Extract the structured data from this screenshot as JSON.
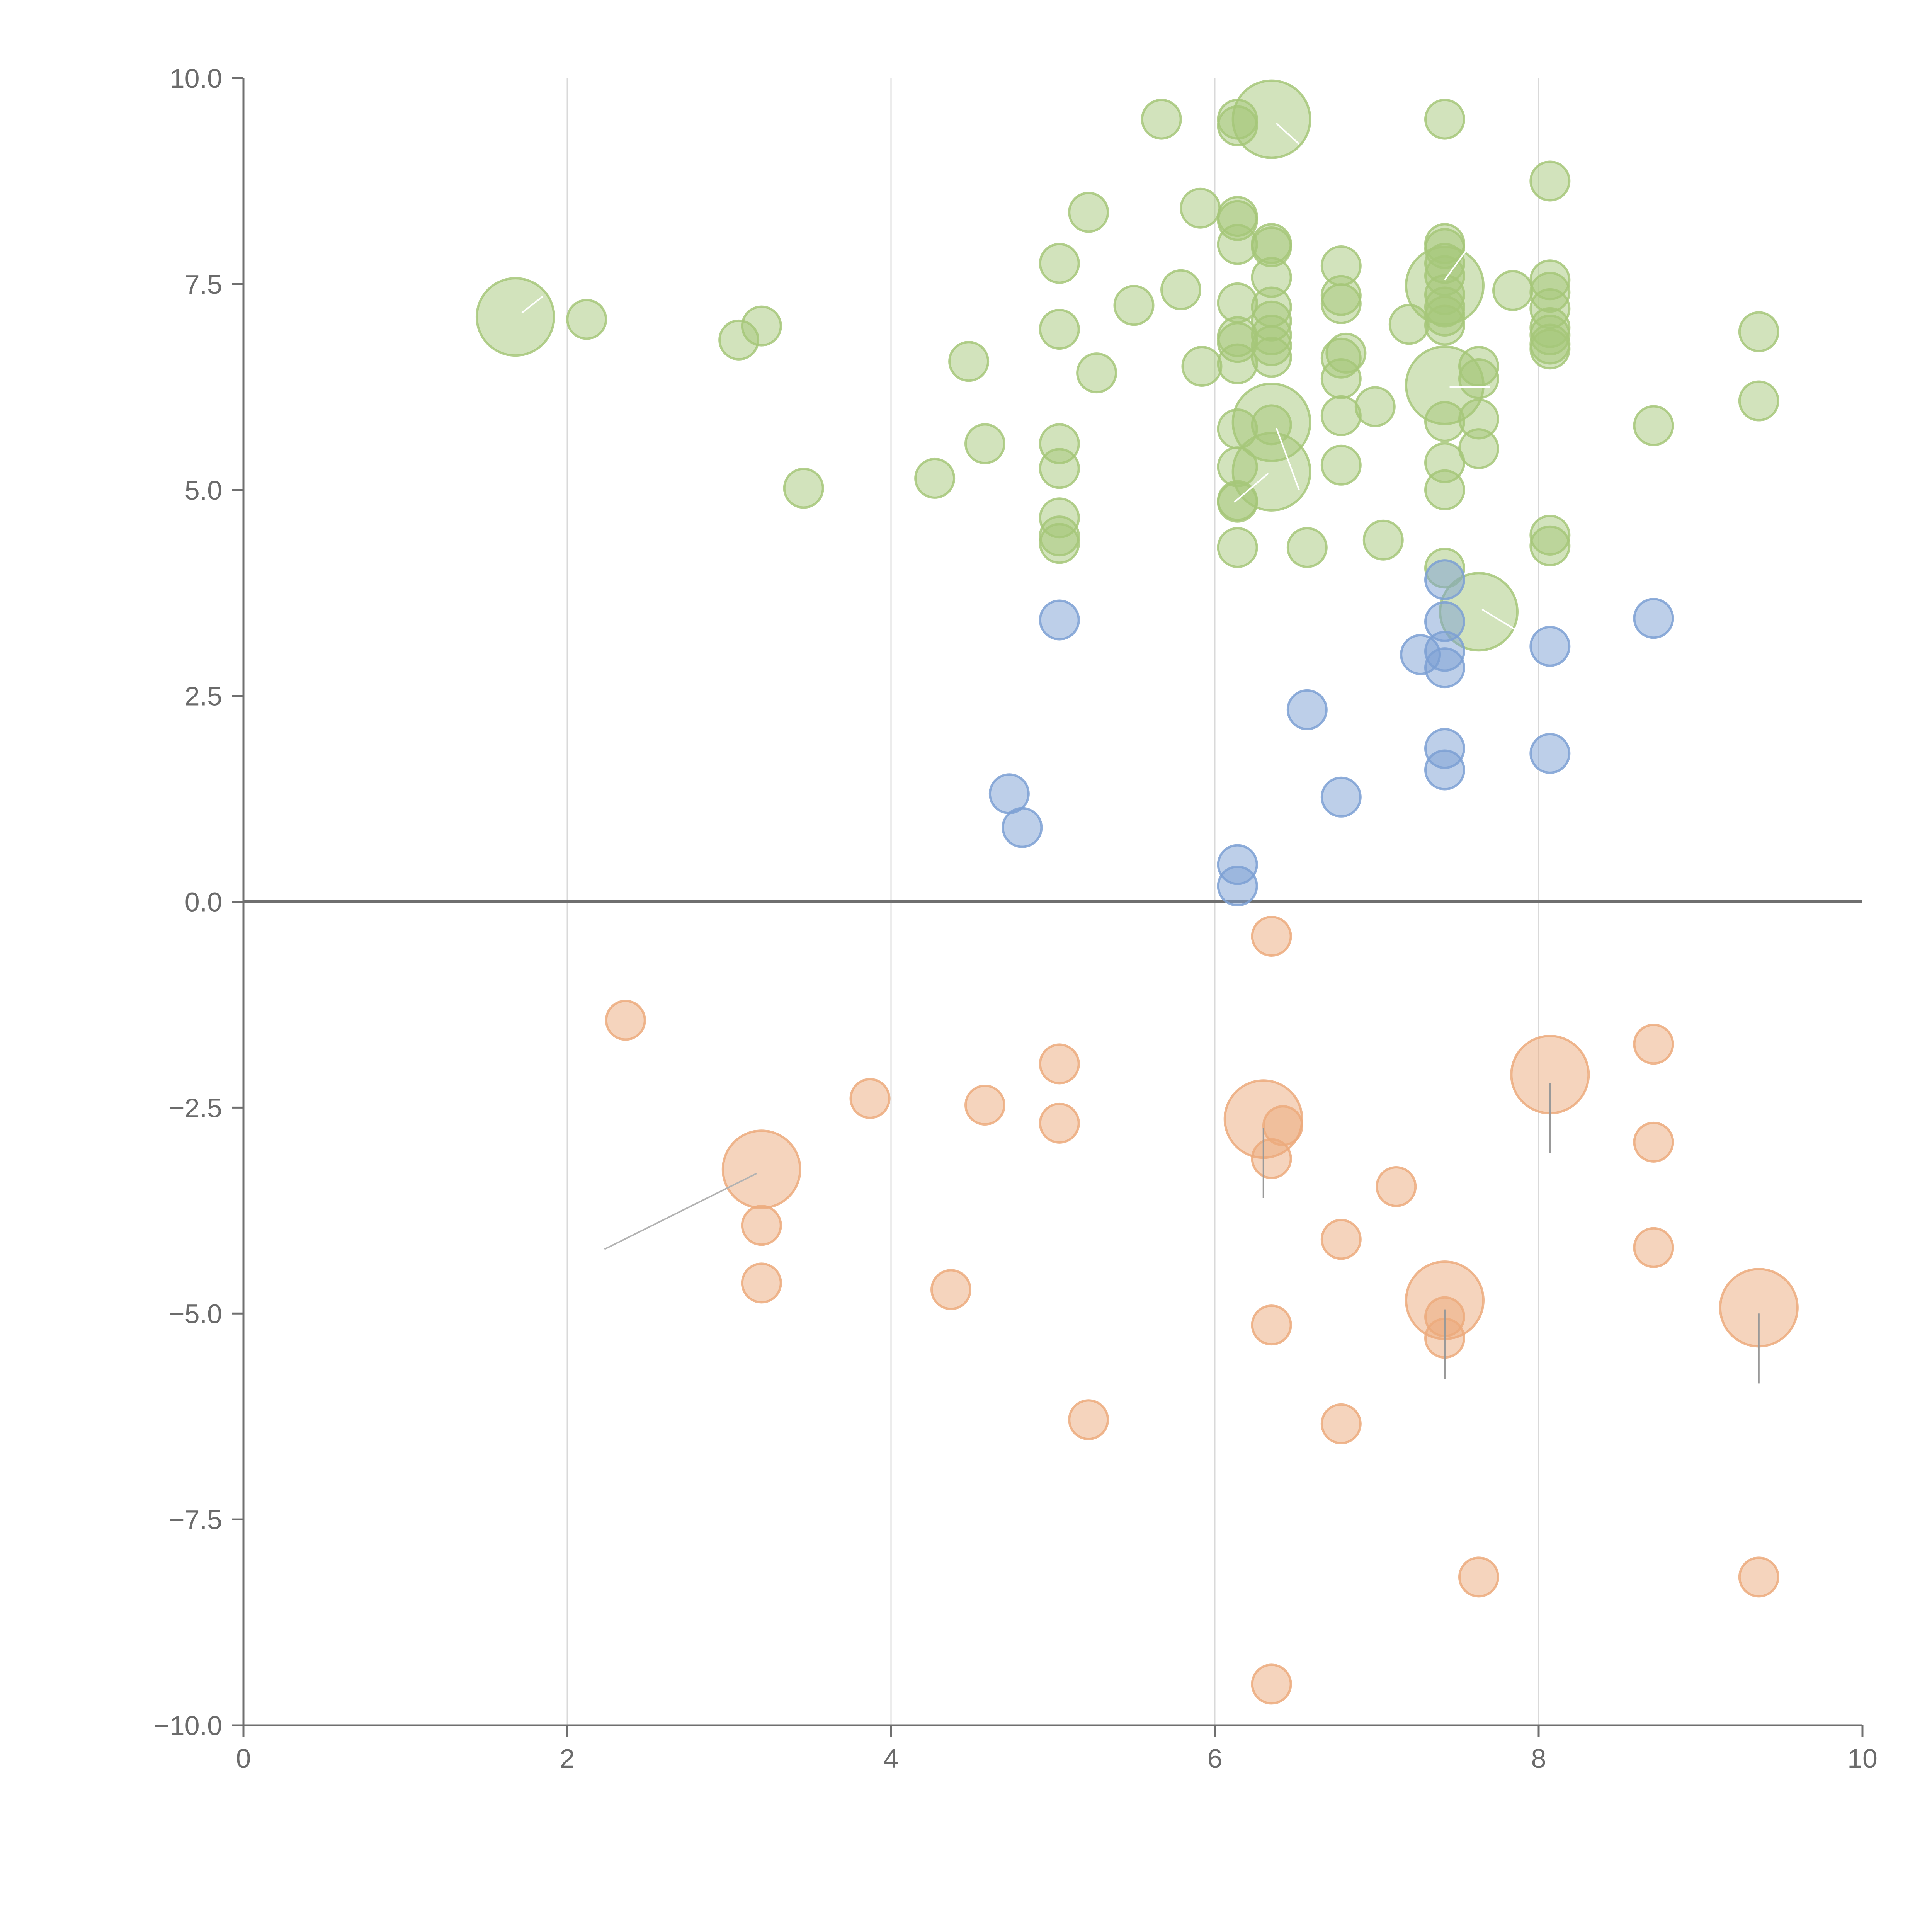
{
  "chart_data": {
    "type": "scatter",
    "title": "",
    "xlabel": "",
    "ylabel": "",
    "xlim": [
      0,
      10
    ],
    "ylim": [
      -10,
      10
    ],
    "x_ticks": [
      0,
      2,
      4,
      6,
      8,
      10
    ],
    "x_tick_labels": [
      "0",
      "2",
      "4",
      "6",
      "8",
      "10"
    ],
    "y_ticks": [
      10,
      7.5,
      5,
      2.5,
      0,
      -2.5,
      -5,
      -7.5,
      -10
    ],
    "y_tick_labels": [
      "10.0",
      "7.5",
      "5.0",
      "2.5",
      "0.0",
      "−2.5",
      "−5.0",
      "−7.5",
      "−10.0"
    ],
    "x_grid": true,
    "y_grid": false,
    "zero_line": true,
    "legend": "none",
    "groups": [
      {
        "color": "#a6c779",
        "points": [
          {
            "x": 1.68,
            "y": 7.1,
            "size": "large"
          },
          {
            "x": 2.12,
            "y": 7.07
          },
          {
            "x": 3.06,
            "y": 6.82
          },
          {
            "x": 3.2,
            "y": 6.99
          },
          {
            "x": 3.46,
            "y": 5.02
          },
          {
            "x": 4.27,
            "y": 5.14
          },
          {
            "x": 4.48,
            "y": 6.56
          },
          {
            "x": 4.58,
            "y": 5.56
          },
          {
            "x": 5.04,
            "y": 7.75
          },
          {
            "x": 5.04,
            "y": 6.95
          },
          {
            "x": 5.04,
            "y": 5.56
          },
          {
            "x": 5.04,
            "y": 5.26
          },
          {
            "x": 5.04,
            "y": 4.66
          },
          {
            "x": 5.04,
            "y": 4.44
          },
          {
            "x": 5.04,
            "y": 4.35
          },
          {
            "x": 5.22,
            "y": 8.37
          },
          {
            "x": 5.27,
            "y": 6.42
          },
          {
            "x": 5.5,
            "y": 7.24
          },
          {
            "x": 5.67,
            "y": 9.5
          },
          {
            "x": 5.79,
            "y": 7.43
          },
          {
            "x": 5.91,
            "y": 8.42
          },
          {
            "x": 5.92,
            "y": 6.5
          },
          {
            "x": 6.14,
            "y": 9.5
          },
          {
            "x": 6.14,
            "y": 9.42
          },
          {
            "x": 6.14,
            "y": 8.32
          },
          {
            "x": 6.14,
            "y": 8.27
          },
          {
            "x": 6.14,
            "y": 7.98
          },
          {
            "x": 6.14,
            "y": 7.27
          },
          {
            "x": 6.14,
            "y": 6.86
          },
          {
            "x": 6.14,
            "y": 6.79
          },
          {
            "x": 6.14,
            "y": 6.53
          },
          {
            "x": 6.14,
            "y": 5.74
          },
          {
            "x": 6.14,
            "y": 5.28
          },
          {
            "x": 6.14,
            "y": 4.87
          },
          {
            "x": 6.14,
            "y": 4.85
          },
          {
            "x": 6.14,
            "y": 4.3
          },
          {
            "x": 6.35,
            "y": 9.5,
            "size": "large"
          },
          {
            "x": 6.35,
            "y": 7.99
          },
          {
            "x": 6.35,
            "y": 7.95
          },
          {
            "x": 6.35,
            "y": 7.58
          },
          {
            "x": 6.35,
            "y": 7.22
          },
          {
            "x": 6.35,
            "y": 7.05
          },
          {
            "x": 6.35,
            "y": 6.88
          },
          {
            "x": 6.35,
            "y": 6.75
          },
          {
            "x": 6.35,
            "y": 6.61
          },
          {
            "x": 6.35,
            "y": 5.82,
            "size": "large"
          },
          {
            "x": 6.35,
            "y": 5.79
          },
          {
            "x": 6.35,
            "y": 5.22,
            "size": "large"
          },
          {
            "x": 6.57,
            "y": 4.3
          },
          {
            "x": 6.78,
            "y": 7.72
          },
          {
            "x": 6.78,
            "y": 7.36
          },
          {
            "x": 6.78,
            "y": 7.26
          },
          {
            "x": 6.78,
            "y": 6.6
          },
          {
            "x": 6.78,
            "y": 6.35
          },
          {
            "x": 6.78,
            "y": 5.9
          },
          {
            "x": 6.78,
            "y": 5.3
          },
          {
            "x": 6.81,
            "y": 6.66
          },
          {
            "x": 6.99,
            "y": 6.01
          },
          {
            "x": 7.04,
            "y": 4.39
          },
          {
            "x": 7.2,
            "y": 7.01
          },
          {
            "x": 7.42,
            "y": 9.5
          },
          {
            "x": 7.42,
            "y": 7.99
          },
          {
            "x": 7.42,
            "y": 7.93
          },
          {
            "x": 7.42,
            "y": 7.75
          },
          {
            "x": 7.42,
            "y": 7.6
          },
          {
            "x": 7.42,
            "y": 7.48,
            "size": "large"
          },
          {
            "x": 7.42,
            "y": 7.37
          },
          {
            "x": 7.42,
            "y": 7.22
          },
          {
            "x": 7.42,
            "y": 7.11
          },
          {
            "x": 7.42,
            "y": 7.0
          },
          {
            "x": 7.42,
            "y": 6.27,
            "size": "large"
          },
          {
            "x": 7.42,
            "y": 5.83
          },
          {
            "x": 7.42,
            "y": 5.33
          },
          {
            "x": 7.42,
            "y": 5.0
          },
          {
            "x": 7.42,
            "y": 4.05
          },
          {
            "x": 7.63,
            "y": 6.5
          },
          {
            "x": 7.63,
            "y": 6.35
          },
          {
            "x": 7.63,
            "y": 5.86
          },
          {
            "x": 7.63,
            "y": 5.5
          },
          {
            "x": 7.63,
            "y": 3.52,
            "size": "large"
          },
          {
            "x": 7.84,
            "y": 7.42
          },
          {
            "x": 8.07,
            "y": 8.75
          },
          {
            "x": 8.07,
            "y": 7.55
          },
          {
            "x": 8.07,
            "y": 7.4
          },
          {
            "x": 8.07,
            "y": 7.2
          },
          {
            "x": 8.07,
            "y": 6.97
          },
          {
            "x": 8.07,
            "y": 6.88
          },
          {
            "x": 8.07,
            "y": 6.77
          },
          {
            "x": 8.07,
            "y": 6.71
          },
          {
            "x": 8.07,
            "y": 4.45
          },
          {
            "x": 8.07,
            "y": 4.32
          },
          {
            "x": 8.71,
            "y": 5.78
          },
          {
            "x": 9.36,
            "y": 6.92
          },
          {
            "x": 9.36,
            "y": 6.08
          }
        ]
      },
      {
        "color": "#7ca0d3",
        "points": [
          {
            "x": 5.04,
            "y": 3.42
          },
          {
            "x": 4.73,
            "y": 1.31
          },
          {
            "x": 4.81,
            "y": 0.9
          },
          {
            "x": 6.14,
            "y": 0.45
          },
          {
            "x": 6.14,
            "y": 0.19
          },
          {
            "x": 6.57,
            "y": 2.33
          },
          {
            "x": 6.78,
            "y": 1.27
          },
          {
            "x": 7.27,
            "y": 3.0
          },
          {
            "x": 7.42,
            "y": 3.91
          },
          {
            "x": 7.42,
            "y": 3.4
          },
          {
            "x": 7.42,
            "y": 3.04
          },
          {
            "x": 7.42,
            "y": 2.84
          },
          {
            "x": 7.42,
            "y": 1.86
          },
          {
            "x": 7.42,
            "y": 1.6
          },
          {
            "x": 8.07,
            "y": 3.1
          },
          {
            "x": 8.07,
            "y": 1.8
          },
          {
            "x": 8.71,
            "y": 3.44
          }
        ]
      },
      {
        "color": "#ecaa7c",
        "points": [
          {
            "x": 2.36,
            "y": -1.44
          },
          {
            "x": 3.2,
            "y": -3.25,
            "size": "large"
          },
          {
            "x": 3.2,
            "y": -3.93
          },
          {
            "x": 3.2,
            "y": -4.63
          },
          {
            "x": 3.87,
            "y": -2.39
          },
          {
            "x": 4.37,
            "y": -4.71
          },
          {
            "x": 4.58,
            "y": -2.47
          },
          {
            "x": 5.04,
            "y": -1.97
          },
          {
            "x": 5.04,
            "y": -2.69
          },
          {
            "x": 5.22,
            "y": -6.29
          },
          {
            "x": 6.3,
            "y": -2.64,
            "size": "large"
          },
          {
            "x": 6.35,
            "y": -0.42
          },
          {
            "x": 6.35,
            "y": -3.12
          },
          {
            "x": 6.35,
            "y": -5.14
          },
          {
            "x": 6.35,
            "y": -9.5
          },
          {
            "x": 6.42,
            "y": -2.72
          },
          {
            "x": 6.78,
            "y": -4.1
          },
          {
            "x": 6.78,
            "y": -6.34
          },
          {
            "x": 7.12,
            "y": -3.46
          },
          {
            "x": 7.42,
            "y": -4.84,
            "size": "large"
          },
          {
            "x": 7.42,
            "y": -5.04
          },
          {
            "x": 7.42,
            "y": -5.3
          },
          {
            "x": 7.63,
            "y": -8.2
          },
          {
            "x": 8.07,
            "y": -2.1,
            "size": "large"
          },
          {
            "x": 8.71,
            "y": -1.73
          },
          {
            "x": 8.71,
            "y": -2.92
          },
          {
            "x": 8.71,
            "y": -4.2
          },
          {
            "x": 9.36,
            "y": -4.93,
            "size": "large"
          },
          {
            "x": 9.36,
            "y": -8.2
          }
        ]
      }
    ]
  }
}
